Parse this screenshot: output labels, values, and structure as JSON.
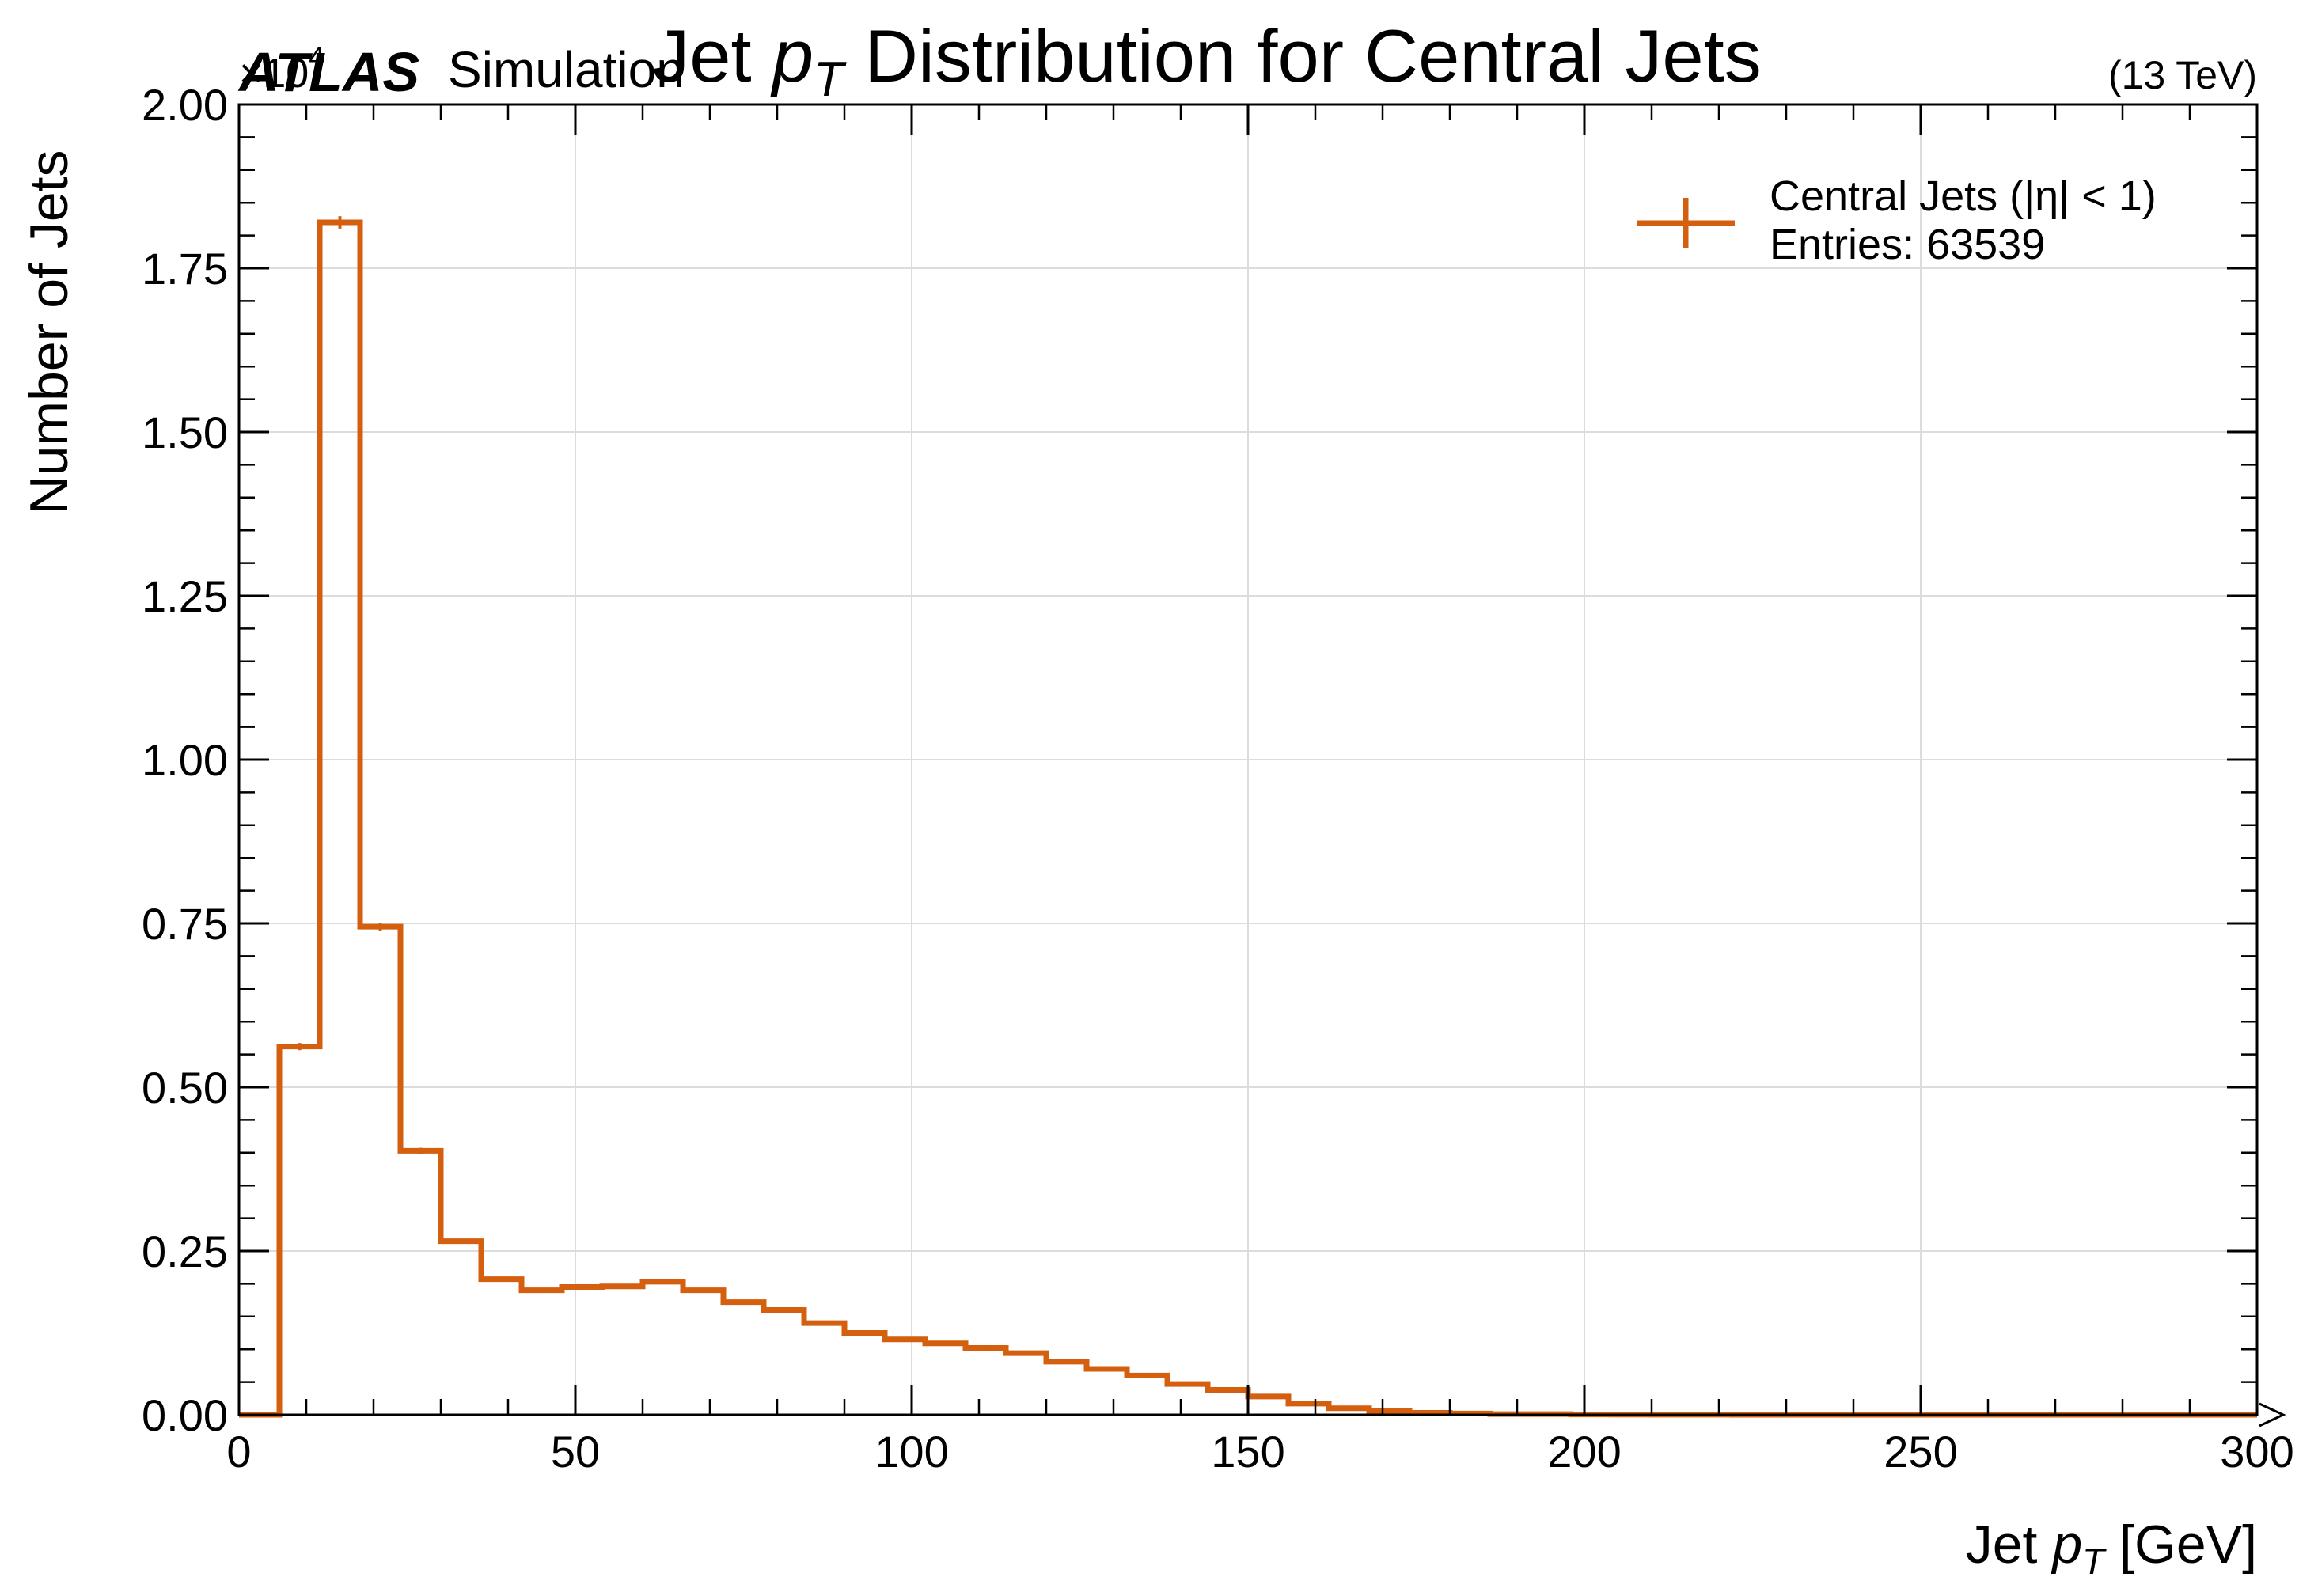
{
  "chart_data": {
    "type": "histogram",
    "title_prefix": "Jet ",
    "title_var": "p",
    "title_sub": "T",
    "title_suffix": " Distribution for Central Jets",
    "xlabel_prefix": "Jet ",
    "xlabel_var": "p",
    "xlabel_sub": "T",
    "xlabel_suffix": " [GeV]",
    "ylabel": "Number of Jets",
    "y_multiplier": "×10",
    "y_multiplier_exp": "4",
    "experiment": "ATLAS",
    "experiment_tag": "Simulation",
    "energy_label": "(13 TeV)",
    "xlim": [
      0,
      300
    ],
    "ylim": [
      0,
      2.0
    ],
    "x_ticks": [
      0,
      50,
      100,
      150,
      200,
      250,
      300
    ],
    "x_tick_labels": [
      "0",
      "50",
      "100",
      "150",
      "200",
      "250",
      "300"
    ],
    "y_ticks": [
      0,
      0.25,
      0.5,
      0.75,
      1.0,
      1.25,
      1.5,
      1.75,
      2.0
    ],
    "y_tick_labels": [
      "0.00",
      "0.25",
      "0.50",
      "0.75",
      "1.00",
      "1.25",
      "1.50",
      "1.75",
      "2.00"
    ],
    "grid": true,
    "legend_position": "top-right",
    "color": "#d45f0e",
    "series": [
      {
        "name": "Central Jets (|η| < 1)",
        "entries_label": "Entries: 63539",
        "bin_edges": [
          0,
          6,
          12,
          18,
          24,
          30,
          36,
          42,
          48,
          54,
          60,
          66,
          72,
          78,
          84,
          90,
          96,
          102,
          108,
          114,
          120,
          126,
          132,
          138,
          144,
          150,
          156,
          162,
          168,
          174,
          180,
          186,
          192,
          198,
          204,
          210,
          216,
          222,
          228,
          234,
          240,
          246,
          252,
          258,
          264,
          270,
          276,
          282,
          288,
          294,
          300
        ],
        "values": [
          0,
          0.562,
          1.82,
          0.745,
          0.403,
          0.265,
          0.207,
          0.19,
          0.195,
          0.196,
          0.203,
          0.19,
          0.172,
          0.16,
          0.14,
          0.125,
          0.115,
          0.109,
          0.102,
          0.094,
          0.081,
          0.07,
          0.06,
          0.047,
          0.038,
          0.028,
          0.017,
          0.01,
          0.006,
          0.003,
          0.002,
          0.001,
          0.001,
          0.0005,
          0.0003,
          0.0002,
          0.0001,
          0,
          0,
          0,
          0,
          0,
          0,
          0,
          0,
          0,
          0,
          0,
          0,
          0
        ],
        "errors": [
          0,
          0.0055,
          0.0095,
          0.0061,
          0.0045,
          0.0036,
          0.0032,
          0.0031,
          0.0031,
          0.0031,
          0.0032,
          0.0031,
          0.0029,
          0.0028,
          0.0026,
          0.0025,
          0.0024,
          0.0023,
          0.0023,
          0.0022,
          0.002,
          0.0019,
          0.0017,
          0.0015,
          0.0014,
          0.0012,
          0.0009,
          0.0007,
          0.0005,
          0.0004,
          0.0003,
          0.0002,
          0.0002,
          0.0001,
          0.0001,
          0.0001,
          0.0001,
          0,
          0,
          0,
          0,
          0,
          0,
          0,
          0,
          0,
          0,
          0,
          0,
          0
        ]
      }
    ]
  }
}
